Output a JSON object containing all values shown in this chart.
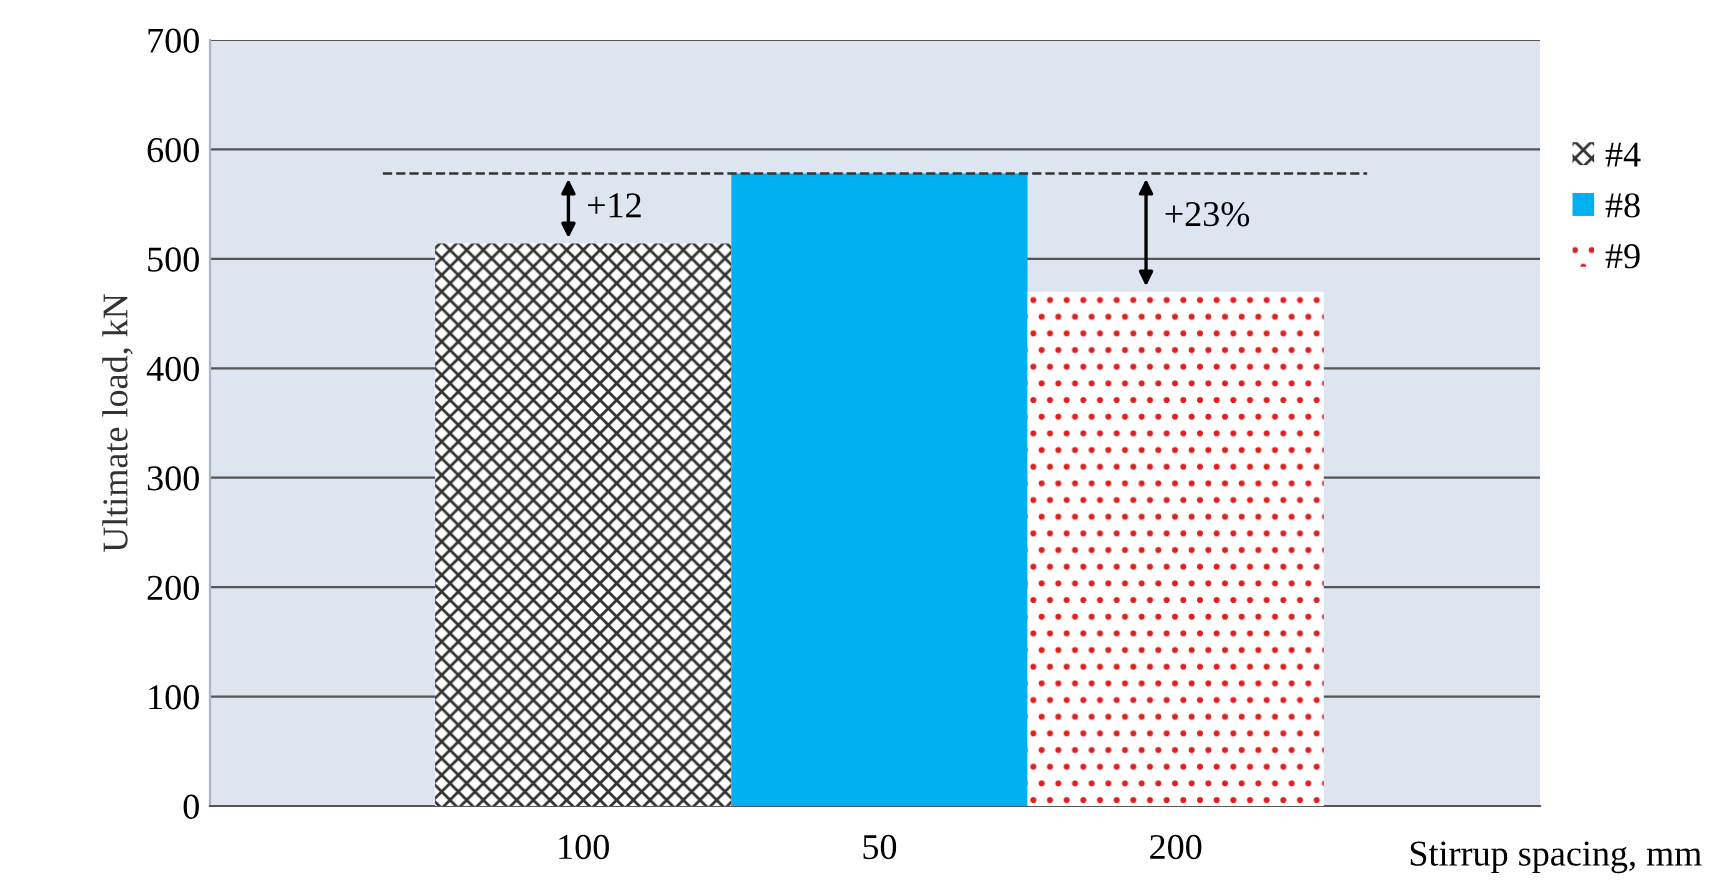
{
  "chart_data": {
    "type": "bar",
    "xlabel": "Stirrup spacing, mm",
    "ylabel": "Ultimate load, kN",
    "categories": [
      "100",
      "50",
      "200"
    ],
    "series": [
      {
        "name": "#4",
        "color": "#333333",
        "values": [
          514,
          null,
          null
        ]
      },
      {
        "name": "#8",
        "color": "#00b0f0",
        "values": [
          null,
          578,
          null
        ]
      },
      {
        "name": "#9",
        "color": "#e02020",
        "values": [
          null,
          null,
          470
        ]
      }
    ],
    "ylim": [
      0,
      700
    ],
    "yticks": [
      0,
      100,
      200,
      300,
      400,
      500,
      600,
      700
    ],
    "grid": "y",
    "legend": "right",
    "ref_lines": [
      {
        "axis": "y",
        "value": 578,
        "line_style": "dashed",
        "color": "#333333"
      }
    ],
    "annotations": [
      "+12",
      "+23%"
    ]
  }
}
